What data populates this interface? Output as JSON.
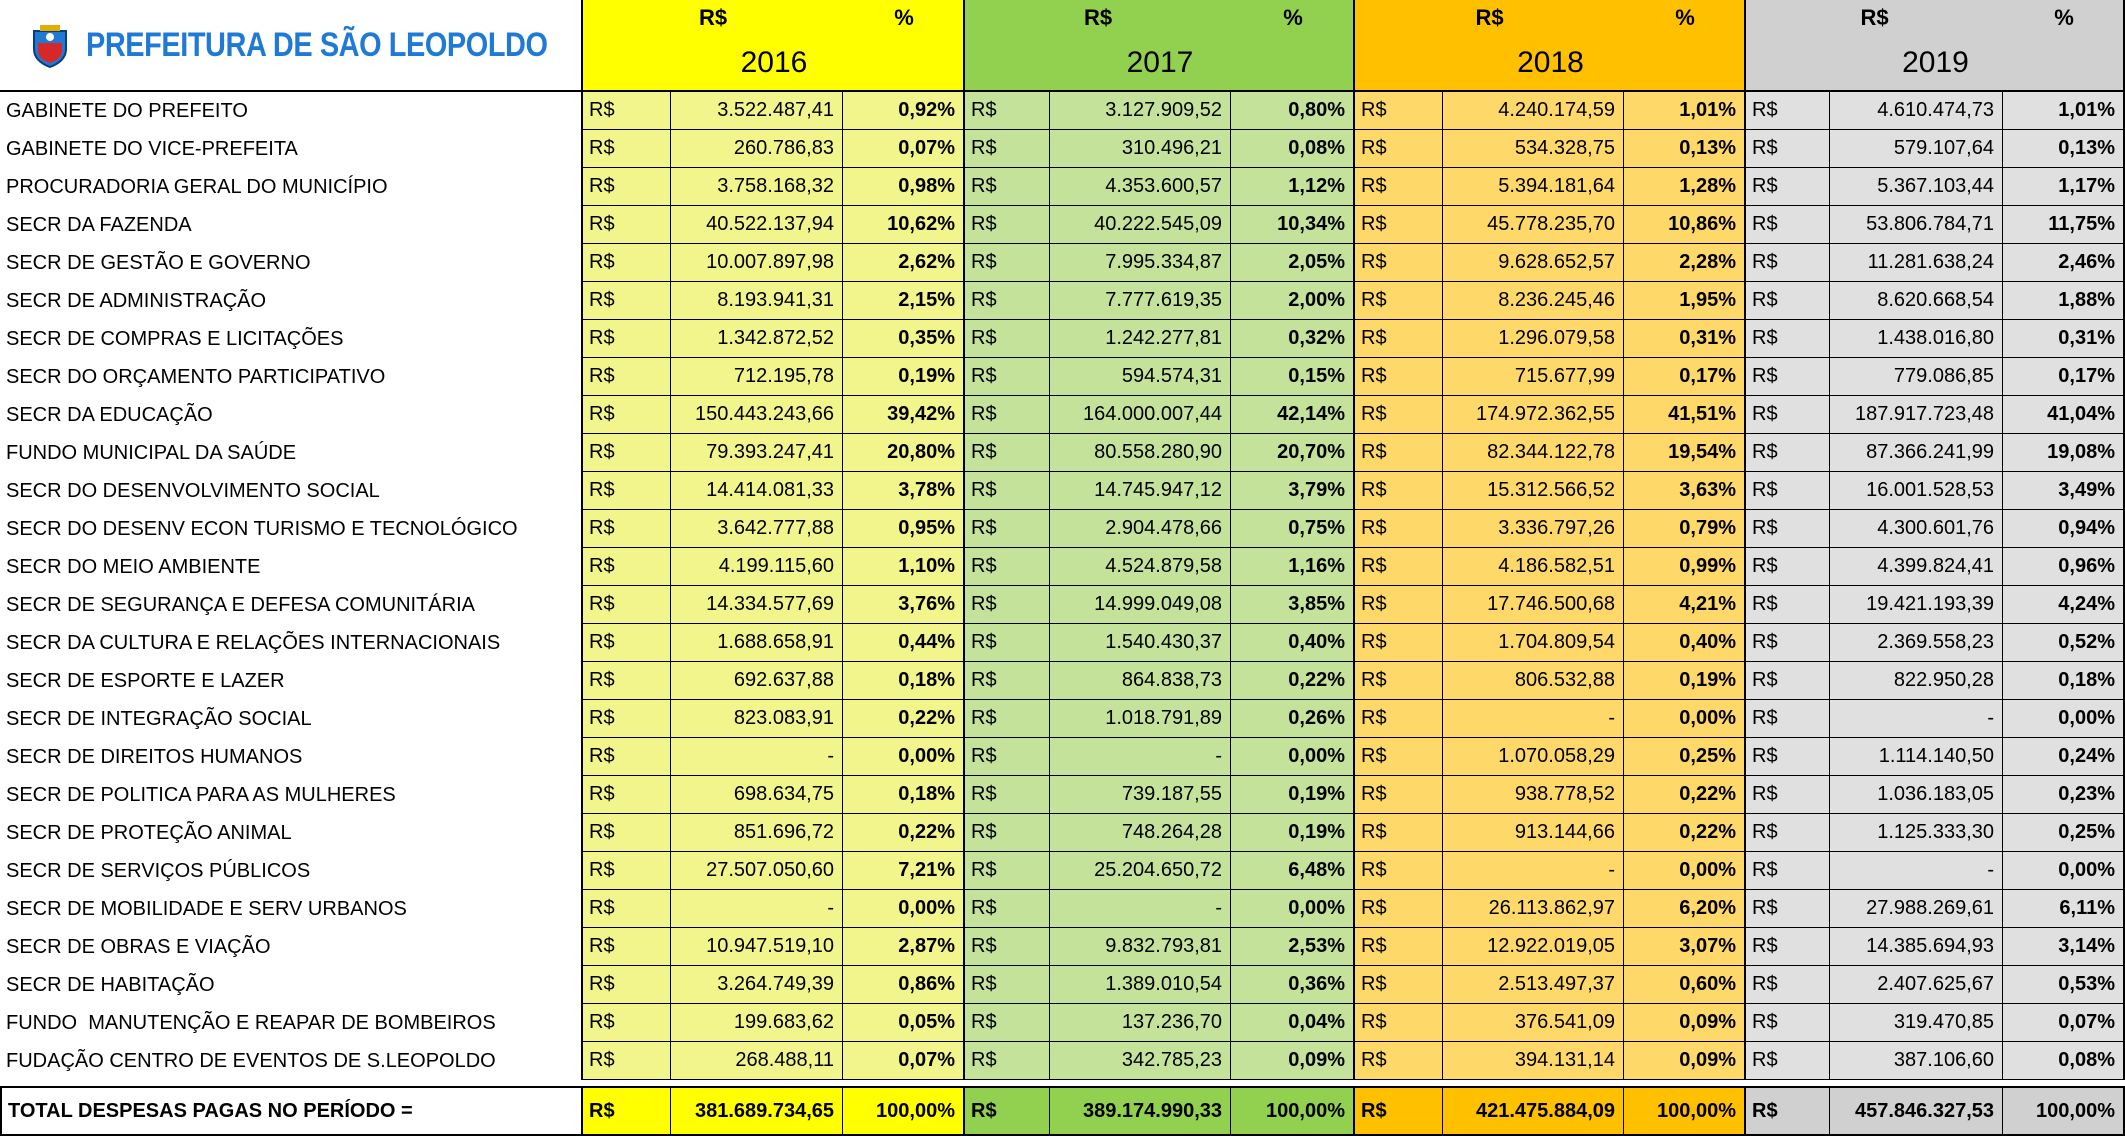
{
  "header": {
    "title": "PREFEITURA DE SÃO LEOPOLDO",
    "currency_label": "R$",
    "percent_label": "%",
    "years": [
      "2016",
      "2017",
      "2018",
      "2019"
    ]
  },
  "table": {
    "rows": [
      {
        "label": "GABINETE DO PREFEITO",
        "cells": [
          [
            "3.522.487,41",
            "0,92%"
          ],
          [
            "3.127.909,52",
            "0,80%"
          ],
          [
            "4.240.174,59",
            "1,01%"
          ],
          [
            "4.610.474,73",
            "1,01%"
          ]
        ]
      },
      {
        "label": "GABINETE DO VICE-PREFEITA",
        "cells": [
          [
            "260.786,83",
            "0,07%"
          ],
          [
            "310.496,21",
            "0,08%"
          ],
          [
            "534.328,75",
            "0,13%"
          ],
          [
            "579.107,64",
            "0,13%"
          ]
        ]
      },
      {
        "label": "PROCURADORIA GERAL DO MUNICÍPIO",
        "cells": [
          [
            "3.758.168,32",
            "0,98%"
          ],
          [
            "4.353.600,57",
            "1,12%"
          ],
          [
            "5.394.181,64",
            "1,28%"
          ],
          [
            "5.367.103,44",
            "1,17%"
          ]
        ]
      },
      {
        "label": "SECR DA FAZENDA",
        "cells": [
          [
            "40.522.137,94",
            "10,62%"
          ],
          [
            "40.222.545,09",
            "10,34%"
          ],
          [
            "45.778.235,70",
            "10,86%"
          ],
          [
            "53.806.784,71",
            "11,75%"
          ]
        ]
      },
      {
        "label": "SECR DE GESTÃO E GOVERNO",
        "cells": [
          [
            "10.007.897,98",
            "2,62%"
          ],
          [
            "7.995.334,87",
            "2,05%"
          ],
          [
            "9.628.652,57",
            "2,28%"
          ],
          [
            "11.281.638,24",
            "2,46%"
          ]
        ]
      },
      {
        "label": "SECR DE ADMINISTRAÇÃO",
        "cells": [
          [
            "8.193.941,31",
            "2,15%"
          ],
          [
            "7.777.619,35",
            "2,00%"
          ],
          [
            "8.236.245,46",
            "1,95%"
          ],
          [
            "8.620.668,54",
            "1,88%"
          ]
        ]
      },
      {
        "label": "SECR DE COMPRAS E LICITAÇÕES",
        "cells": [
          [
            "1.342.872,52",
            "0,35%"
          ],
          [
            "1.242.277,81",
            "0,32%"
          ],
          [
            "1.296.079,58",
            "0,31%"
          ],
          [
            "1.438.016,80",
            "0,31%"
          ]
        ]
      },
      {
        "label": "SECR DO ORÇAMENTO PARTICIPATIVO",
        "cells": [
          [
            "712.195,78",
            "0,19%"
          ],
          [
            "594.574,31",
            "0,15%"
          ],
          [
            "715.677,99",
            "0,17%"
          ],
          [
            "779.086,85",
            "0,17%"
          ]
        ]
      },
      {
        "label": "SECR DA EDUCAÇÃO",
        "cells": [
          [
            "150.443.243,66",
            "39,42%"
          ],
          [
            "164.000.007,44",
            "42,14%"
          ],
          [
            "174.972.362,55",
            "41,51%"
          ],
          [
            "187.917.723,48",
            "41,04%"
          ]
        ]
      },
      {
        "label": "FUNDO MUNICIPAL DA SAÚDE",
        "cells": [
          [
            "79.393.247,41",
            "20,80%"
          ],
          [
            "80.558.280,90",
            "20,70%"
          ],
          [
            "82.344.122,78",
            "19,54%"
          ],
          [
            "87.366.241,99",
            "19,08%"
          ]
        ]
      },
      {
        "label": "SECR DO DESENVOLVIMENTO SOCIAL",
        "cells": [
          [
            "14.414.081,33",
            "3,78%"
          ],
          [
            "14.745.947,12",
            "3,79%"
          ],
          [
            "15.312.566,52",
            "3,63%"
          ],
          [
            "16.001.528,53",
            "3,49%"
          ]
        ]
      },
      {
        "label": "SECR DO DESENV ECON TURISMO E TECNOLÓGICO",
        "cells": [
          [
            "3.642.777,88",
            "0,95%"
          ],
          [
            "2.904.478,66",
            "0,75%"
          ],
          [
            "3.336.797,26",
            "0,79%"
          ],
          [
            "4.300.601,76",
            "0,94%"
          ]
        ]
      },
      {
        "label": "SECR DO MEIO AMBIENTE",
        "cells": [
          [
            "4.199.115,60",
            "1,10%"
          ],
          [
            "4.524.879,58",
            "1,16%"
          ],
          [
            "4.186.582,51",
            "0,99%"
          ],
          [
            "4.399.824,41",
            "0,96%"
          ]
        ]
      },
      {
        "label": "SECR DE SEGURANÇA E DEFESA COMUNITÁRIA",
        "cells": [
          [
            "14.334.577,69",
            "3,76%"
          ],
          [
            "14.999.049,08",
            "3,85%"
          ],
          [
            "17.746.500,68",
            "4,21%"
          ],
          [
            "19.421.193,39",
            "4,24%"
          ]
        ]
      },
      {
        "label": "SECR DA CULTURA E RELAÇÕES INTERNACIONAIS",
        "cells": [
          [
            "1.688.658,91",
            "0,44%"
          ],
          [
            "1.540.430,37",
            "0,40%"
          ],
          [
            "1.704.809,54",
            "0,40%"
          ],
          [
            "2.369.558,23",
            "0,52%"
          ]
        ]
      },
      {
        "label": "SECR DE ESPORTE E LAZER",
        "cells": [
          [
            "692.637,88",
            "0,18%"
          ],
          [
            "864.838,73",
            "0,22%"
          ],
          [
            "806.532,88",
            "0,19%"
          ],
          [
            "822.950,28",
            "0,18%"
          ]
        ]
      },
      {
        "label": "SECR DE INTEGRAÇÃO SOCIAL",
        "cells": [
          [
            "823.083,91",
            "0,22%"
          ],
          [
            "1.018.791,89",
            "0,26%"
          ],
          [
            "-",
            "0,00%"
          ],
          [
            "-",
            "0,00%"
          ]
        ]
      },
      {
        "label": "SECR DE DIREITOS HUMANOS",
        "cells": [
          [
            "-",
            "0,00%"
          ],
          [
            "-",
            "0,00%"
          ],
          [
            "1.070.058,29",
            "0,25%"
          ],
          [
            "1.114.140,50",
            "0,24%"
          ]
        ]
      },
      {
        "label": "SECR DE POLITICA PARA AS MULHERES",
        "cells": [
          [
            "698.634,75",
            "0,18%"
          ],
          [
            "739.187,55",
            "0,19%"
          ],
          [
            "938.778,52",
            "0,22%"
          ],
          [
            "1.036.183,05",
            "0,23%"
          ]
        ]
      },
      {
        "label": "SECR DE PROTEÇÃO ANIMAL",
        "cells": [
          [
            "851.696,72",
            "0,22%"
          ],
          [
            "748.264,28",
            "0,19%"
          ],
          [
            "913.144,66",
            "0,22%"
          ],
          [
            "1.125.333,30",
            "0,25%"
          ]
        ]
      },
      {
        "label": "SECR DE SERVIÇOS PÚBLICOS",
        "cells": [
          [
            "27.507.050,60",
            "7,21%"
          ],
          [
            "25.204.650,72",
            "6,48%"
          ],
          [
            "-",
            "0,00%"
          ],
          [
            "-",
            "0,00%"
          ]
        ]
      },
      {
        "label": "SECR DE MOBILIDADE E SERV URBANOS",
        "cells": [
          [
            "-",
            "0,00%"
          ],
          [
            "-",
            "0,00%"
          ],
          [
            "26.113.862,97",
            "6,20%"
          ],
          [
            "27.988.269,61",
            "6,11%"
          ]
        ]
      },
      {
        "label": "SECR DE OBRAS E VIAÇÃO",
        "cells": [
          [
            "10.947.519,10",
            "2,87%"
          ],
          [
            "9.832.793,81",
            "2,53%"
          ],
          [
            "12.922.019,05",
            "3,07%"
          ],
          [
            "14.385.694,93",
            "3,14%"
          ]
        ]
      },
      {
        "label": "SECR DE HABITAÇÃO",
        "cells": [
          [
            "3.264.749,39",
            "0,86%"
          ],
          [
            "1.389.010,54",
            "0,36%"
          ],
          [
            "2.513.497,37",
            "0,60%"
          ],
          [
            "2.407.625,67",
            "0,53%"
          ]
        ]
      },
      {
        "label": "FUNDO  MANUTENÇÃO E REAPAR DE BOMBEIROS",
        "cells": [
          [
            "199.683,62",
            "0,05%"
          ],
          [
            "137.236,70",
            "0,04%"
          ],
          [
            "376.541,09",
            "0,09%"
          ],
          [
            "319.470,85",
            "0,07%"
          ]
        ]
      },
      {
        "label": "FUDAÇÃO CENTRO DE EVENTOS DE S.LEOPOLDO",
        "cells": [
          [
            "268.488,11",
            "0,07%"
          ],
          [
            "342.785,23",
            "0,09%"
          ],
          [
            "394.131,14",
            "0,09%"
          ],
          [
            "387.106,60",
            "0,08%"
          ]
        ]
      }
    ],
    "total": {
      "label": "TOTAL DESPESAS PAGAS NO PERÍODO =",
      "cells": [
        [
          "381.689.734,65",
          "100,00%"
        ],
        [
          "389.174.990,33",
          "100,00%"
        ],
        [
          "421.475.884,09",
          "100,00%"
        ],
        [
          "457.846.327,53",
          "100,00%"
        ]
      ]
    }
  }
}
